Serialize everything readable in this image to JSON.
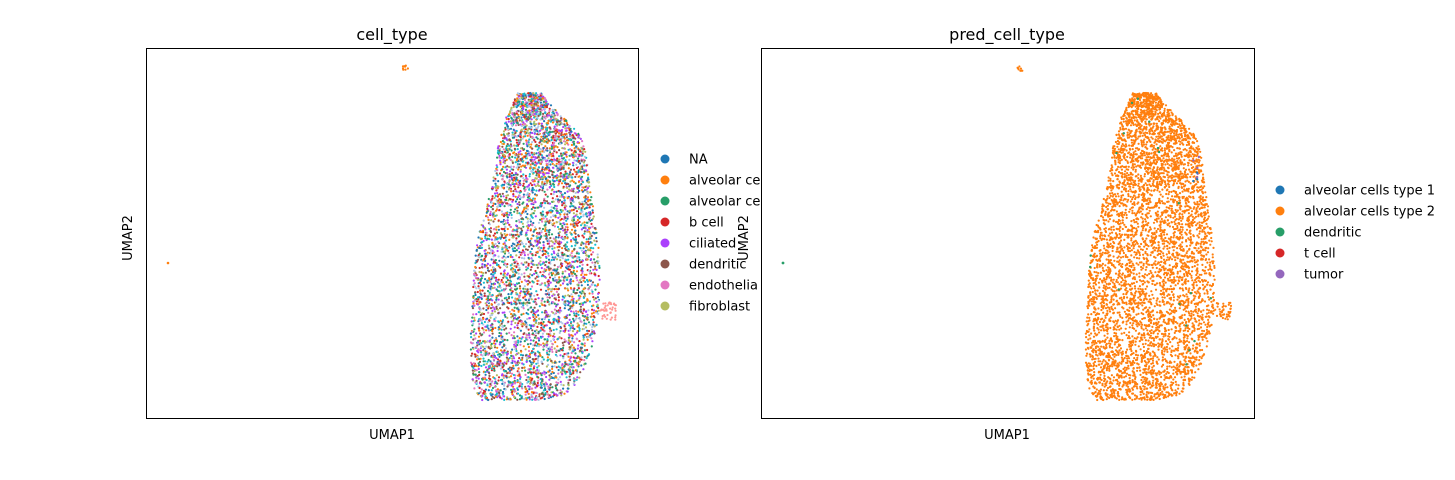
{
  "chart_data": [
    {
      "type": "scatter",
      "title": "cell_type",
      "xlabel": "UMAP1",
      "ylabel": "UMAP2",
      "grid": false,
      "ticks": "none",
      "legend_position": "right",
      "legend_entries": [
        {
          "name": "NA",
          "color": "#1f77b4"
        },
        {
          "name": "alveolar ce",
          "color": "#ff7f0e"
        },
        {
          "name": "alveolar ce",
          "color": "#279e68"
        },
        {
          "name": "b cell",
          "color": "#d62728"
        },
        {
          "name": "ciliated",
          "color": "#aa40fc"
        },
        {
          "name": "dendritic",
          "color": "#8c564b"
        },
        {
          "name": "endothelia",
          "color": "#e377c2"
        },
        {
          "name": "fibroblast",
          "color": "#b5bd61"
        }
      ],
      "mix_colors": [
        "#279e68",
        "#ff7f0e",
        "#e377c2",
        "#b5bd61",
        "#aa40fc",
        "#8c564b",
        "#d62728",
        "#1f77b4",
        "#aec7e8",
        "#17becf"
      ],
      "side_cluster_color": "#ff9896"
    },
    {
      "type": "scatter",
      "title": "pred_cell_type",
      "xlabel": "UMAP1",
      "ylabel": "UMAP2",
      "grid": false,
      "ticks": "none",
      "legend_position": "right",
      "legend_entries": [
        {
          "name": "alveolar cells type 1",
          "color": "#1f77b4"
        },
        {
          "name": "alveolar cells type 2",
          "color": "#ff7f0e"
        },
        {
          "name": "dendritic",
          "color": "#279e68"
        },
        {
          "name": "t cell",
          "color": "#d62728"
        },
        {
          "name": "tumor",
          "color": "#9467bd"
        }
      ],
      "dominant_color": "#ff7f0e",
      "outlier_color": "#279e68"
    }
  ]
}
